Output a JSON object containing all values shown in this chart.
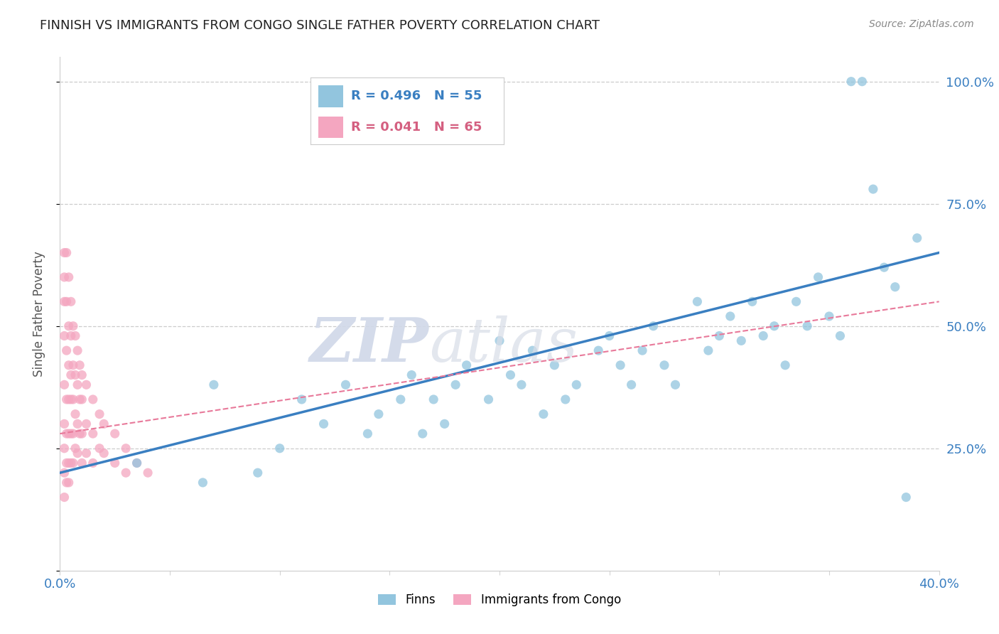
{
  "title": "FINNISH VS IMMIGRANTS FROM CONGO SINGLE FATHER POVERTY CORRELATION CHART",
  "source": "Source: ZipAtlas.com",
  "ylabel": "Single Father Poverty",
  "r_finns": 0.496,
  "n_finns": 55,
  "r_congo": 0.041,
  "n_congo": 65,
  "legend_label_finns": "Finns",
  "legend_label_congo": "Immigrants from Congo",
  "color_finns": "#92c5de",
  "color_congo": "#f4a6c0",
  "color_finns_line": "#3a7fc1",
  "color_congo_line": "#e8799a",
  "xlim": [
    0.0,
    0.4
  ],
  "ylim": [
    0.0,
    1.05
  ],
  "finns_x": [
    0.035,
    0.065,
    0.07,
    0.09,
    0.1,
    0.11,
    0.12,
    0.13,
    0.14,
    0.145,
    0.155,
    0.16,
    0.165,
    0.17,
    0.175,
    0.18,
    0.185,
    0.195,
    0.2,
    0.205,
    0.21,
    0.215,
    0.22,
    0.225,
    0.23,
    0.235,
    0.245,
    0.25,
    0.255,
    0.26,
    0.265,
    0.27,
    0.275,
    0.28,
    0.29,
    0.295,
    0.3,
    0.305,
    0.31,
    0.315,
    0.32,
    0.325,
    0.33,
    0.335,
    0.34,
    0.345,
    0.35,
    0.355,
    0.36,
    0.365,
    0.37,
    0.375,
    0.38,
    0.385,
    0.39
  ],
  "finns_y": [
    0.22,
    0.18,
    0.38,
    0.2,
    0.25,
    0.35,
    0.3,
    0.38,
    0.28,
    0.32,
    0.35,
    0.4,
    0.28,
    0.35,
    0.3,
    0.38,
    0.42,
    0.35,
    0.47,
    0.4,
    0.38,
    0.45,
    0.32,
    0.42,
    0.35,
    0.38,
    0.45,
    0.48,
    0.42,
    0.38,
    0.45,
    0.5,
    0.42,
    0.38,
    0.55,
    0.45,
    0.48,
    0.52,
    0.47,
    0.55,
    0.48,
    0.5,
    0.42,
    0.55,
    0.5,
    0.6,
    0.52,
    0.48,
    1.0,
    1.0,
    0.78,
    0.62,
    0.58,
    0.15,
    0.68
  ],
  "congo_x": [
    0.002,
    0.002,
    0.002,
    0.002,
    0.002,
    0.002,
    0.002,
    0.002,
    0.002,
    0.003,
    0.003,
    0.003,
    0.003,
    0.003,
    0.003,
    0.003,
    0.004,
    0.004,
    0.004,
    0.004,
    0.004,
    0.004,
    0.004,
    0.005,
    0.005,
    0.005,
    0.005,
    0.005,
    0.005,
    0.006,
    0.006,
    0.006,
    0.006,
    0.006,
    0.007,
    0.007,
    0.007,
    0.007,
    0.008,
    0.008,
    0.008,
    0.008,
    0.009,
    0.009,
    0.009,
    0.01,
    0.01,
    0.01,
    0.01,
    0.012,
    0.012,
    0.012,
    0.015,
    0.015,
    0.015,
    0.018,
    0.018,
    0.02,
    0.02,
    0.025,
    0.025,
    0.03,
    0.03,
    0.035,
    0.04
  ],
  "congo_y": [
    0.65,
    0.6,
    0.55,
    0.48,
    0.38,
    0.3,
    0.25,
    0.2,
    0.15,
    0.65,
    0.55,
    0.45,
    0.35,
    0.28,
    0.22,
    0.18,
    0.6,
    0.5,
    0.42,
    0.35,
    0.28,
    0.22,
    0.18,
    0.55,
    0.48,
    0.4,
    0.35,
    0.28,
    0.22,
    0.5,
    0.42,
    0.35,
    0.28,
    0.22,
    0.48,
    0.4,
    0.32,
    0.25,
    0.45,
    0.38,
    0.3,
    0.24,
    0.42,
    0.35,
    0.28,
    0.4,
    0.35,
    0.28,
    0.22,
    0.38,
    0.3,
    0.24,
    0.35,
    0.28,
    0.22,
    0.32,
    0.25,
    0.3,
    0.24,
    0.28,
    0.22,
    0.25,
    0.2,
    0.22,
    0.2
  ]
}
